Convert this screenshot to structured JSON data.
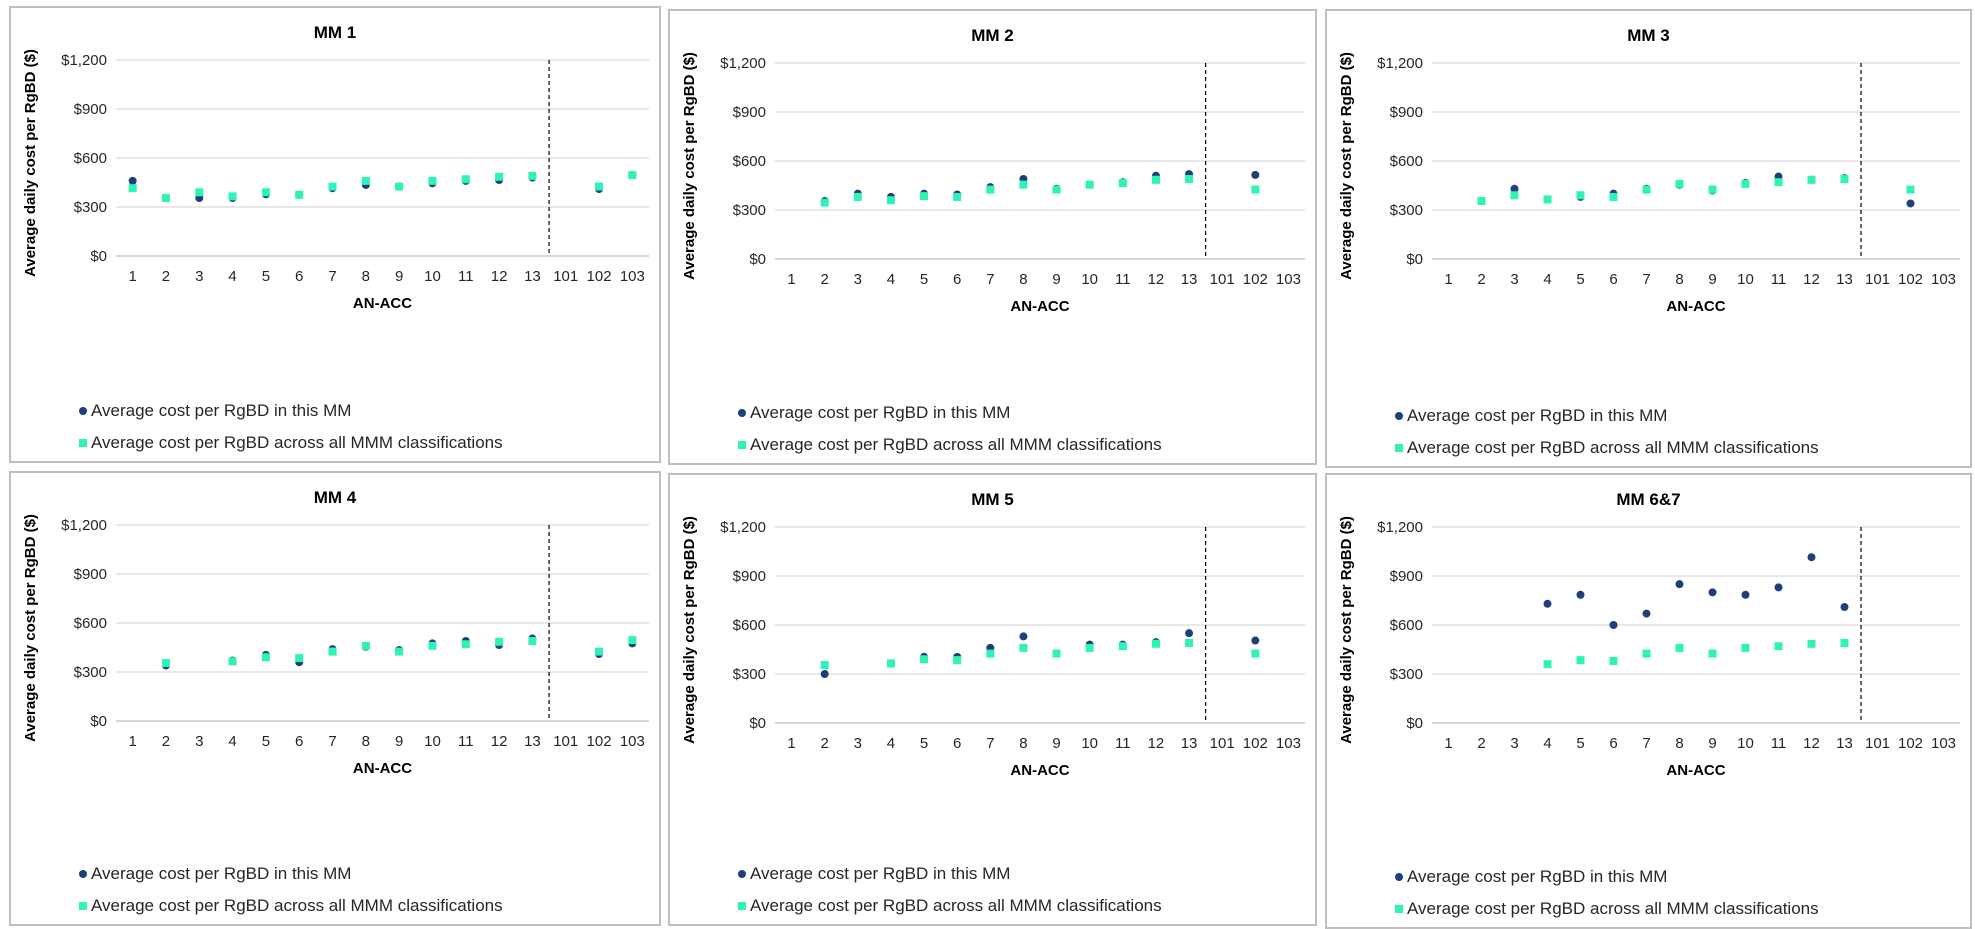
{
  "colors": {
    "mm_series": "#1f3e7a",
    "all_series": "#2ff2b7",
    "grid": "#d9d9d9",
    "border": "#bfbfbf"
  },
  "legend_labels": [
    "Average cost per RgBD in this MM",
    "Average cost per RgBD across all MMM classifications"
  ],
  "chart_data": [
    {
      "type": "scatter",
      "title": "MM 1",
      "xlabel": "AN-ACC",
      "ylabel": "Average daily cost per RgBD ($)",
      "categories": [
        "1",
        "2",
        "3",
        "4",
        "5",
        "6",
        "7",
        "8",
        "9",
        "10",
        "11",
        "12",
        "13",
        "101",
        "102",
        "103"
      ],
      "yticks": [
        "$0",
        "$300",
        "$600",
        "$900",
        "$1,200"
      ],
      "ylim": [
        0,
        1200
      ],
      "divider_after": "13",
      "grid": true,
      "legend_position": "bottom",
      "series": [
        {
          "name": "Average cost per RgBD in this MM",
          "values": [
            460,
            null,
            355,
            355,
            378,
            375,
            415,
            435,
            425,
            445,
            460,
            465,
            480,
            null,
            410,
            495
          ]
        },
        {
          "name": "Average cost per RgBD across all MMM classifications",
          "values": [
            415,
            355,
            390,
            365,
            390,
            375,
            425,
            460,
            425,
            460,
            470,
            485,
            490,
            null,
            425,
            495
          ]
        }
      ]
    },
    {
      "type": "scatter",
      "title": "MM 2",
      "xlabel": "AN-ACC",
      "ylabel": "Average daily cost per RgBD ($)",
      "categories": [
        "1",
        "2",
        "3",
        "4",
        "5",
        "6",
        "7",
        "8",
        "9",
        "10",
        "11",
        "12",
        "13",
        "101",
        "102",
        "103"
      ],
      "yticks": [
        "$0",
        "$300",
        "$600",
        "$900",
        "$1,200"
      ],
      "ylim": [
        0,
        1200
      ],
      "divider_after": "13",
      "grid": true,
      "legend_position": "bottom",
      "series": [
        {
          "name": "Average cost per RgBD in this MM",
          "values": [
            null,
            355,
            400,
            380,
            400,
            395,
            440,
            490,
            430,
            455,
            470,
            510,
            520,
            null,
            515,
            null
          ]
        },
        {
          "name": "Average cost per RgBD across all MMM classifications",
          "values": [
            null,
            345,
            380,
            360,
            385,
            380,
            425,
            455,
            425,
            455,
            465,
            485,
            490,
            null,
            425,
            null
          ]
        }
      ]
    },
    {
      "type": "scatter",
      "title": "MM 3",
      "xlabel": "AN-ACC",
      "ylabel": "Average daily cost per RgBD ($)",
      "categories": [
        "1",
        "2",
        "3",
        "4",
        "5",
        "6",
        "7",
        "8",
        "9",
        "10",
        "11",
        "12",
        "13",
        "101",
        "102",
        "103"
      ],
      "yticks": [
        "$0",
        "$300",
        "$600",
        "$900",
        "$1,200"
      ],
      "ylim": [
        0,
        1200
      ],
      "divider_after": "13",
      "grid": true,
      "legend_position": "bottom",
      "series": [
        {
          "name": "Average cost per RgBD in this MM",
          "values": [
            null,
            355,
            430,
            365,
            380,
            400,
            430,
            455,
            420,
            465,
            505,
            485,
            495,
            null,
            340,
            null
          ]
        },
        {
          "name": "Average cost per RgBD across all MMM classifications",
          "values": [
            null,
            355,
            390,
            365,
            390,
            380,
            425,
            460,
            425,
            460,
            470,
            485,
            490,
            null,
            425,
            null
          ]
        }
      ]
    },
    {
      "type": "scatter",
      "title": "MM 4",
      "xlabel": "AN-ACC",
      "ylabel": "Average daily cost per RgBD ($)",
      "categories": [
        "1",
        "2",
        "3",
        "4",
        "5",
        "6",
        "7",
        "8",
        "9",
        "10",
        "11",
        "12",
        "13",
        "101",
        "102",
        "103"
      ],
      "yticks": [
        "$0",
        "$300",
        "$600",
        "$900",
        "$1,200"
      ],
      "ylim": [
        0,
        1200
      ],
      "divider_after": "13",
      "grid": true,
      "legend_position": "bottom",
      "series": [
        {
          "name": "Average cost per RgBD in this MM",
          "values": [
            null,
            340,
            null,
            370,
            405,
            360,
            440,
            455,
            435,
            475,
            490,
            465,
            505,
            null,
            410,
            475
          ]
        },
        {
          "name": "Average cost per RgBD across all MMM classifications",
          "values": [
            null,
            355,
            null,
            365,
            390,
            385,
            425,
            460,
            425,
            460,
            470,
            485,
            490,
            null,
            425,
            495
          ]
        }
      ]
    },
    {
      "type": "scatter",
      "title": "MM 5",
      "xlabel": "AN-ACC",
      "ylabel": "Average daily cost per RgBD ($)",
      "categories": [
        "1",
        "2",
        "3",
        "4",
        "5",
        "6",
        "7",
        "8",
        "9",
        "10",
        "11",
        "12",
        "13",
        "101",
        "102",
        "103"
      ],
      "yticks": [
        "$0",
        "$300",
        "$600",
        "$900",
        "$1,200"
      ],
      "ylim": [
        0,
        1200
      ],
      "divider_after": "13",
      "grid": true,
      "legend_position": "bottom",
      "series": [
        {
          "name": "Average cost per RgBD in this MM",
          "values": [
            null,
            300,
            null,
            365,
            405,
            405,
            460,
            530,
            425,
            480,
            480,
            495,
            550,
            null,
            505,
            null
          ]
        },
        {
          "name": "Average cost per RgBD across all MMM classifications",
          "values": [
            null,
            355,
            null,
            365,
            390,
            385,
            425,
            460,
            425,
            460,
            470,
            485,
            490,
            null,
            425,
            null
          ]
        }
      ]
    },
    {
      "type": "scatter",
      "title": "MM 6&7",
      "xlabel": "AN-ACC",
      "ylabel": "Average daily cost per RgBD ($)",
      "categories": [
        "1",
        "2",
        "3",
        "4",
        "5",
        "6",
        "7",
        "8",
        "9",
        "10",
        "11",
        "12",
        "13",
        "101",
        "102",
        "103"
      ],
      "yticks": [
        "$0",
        "$300",
        "$600",
        "$900",
        "$1,200"
      ],
      "ylim": [
        0,
        1200
      ],
      "divider_after": "13",
      "grid": true,
      "legend_position": "bottom",
      "series": [
        {
          "name": "Average cost per RgBD in this MM",
          "values": [
            null,
            null,
            null,
            730,
            785,
            600,
            670,
            850,
            800,
            785,
            830,
            1015,
            710,
            null,
            null,
            null
          ]
        },
        {
          "name": "Average cost per RgBD across all MMM classifications",
          "values": [
            null,
            null,
            null,
            360,
            385,
            380,
            425,
            460,
            425,
            460,
            470,
            485,
            490,
            null,
            null,
            null
          ]
        }
      ]
    }
  ]
}
